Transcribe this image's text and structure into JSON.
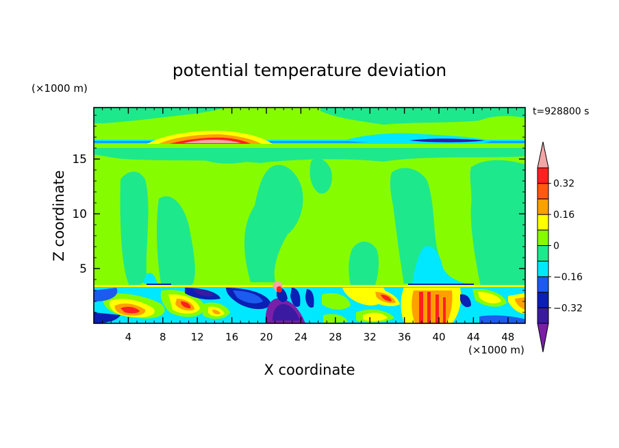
{
  "chart_data": {
    "type": "heatmap",
    "title": "potential temperature deviation",
    "time_label": "t=928800 s",
    "xlabel": "X coordinate",
    "ylabel": "Z coordinate",
    "x_unit": "(×1000 m)",
    "z_unit": "(×1000 m)",
    "xlim": [
      0,
      50
    ],
    "zlim": [
      0,
      19.7
    ],
    "x_ticks": [
      4,
      8,
      12,
      16,
      20,
      24,
      28,
      32,
      36,
      40,
      44,
      48
    ],
    "z_ticks": [
      5,
      10,
      15
    ],
    "colorbar": {
      "levels": [
        -0.4,
        -0.32,
        -0.24,
        -0.16,
        -0.08,
        0,
        0.08,
        0.16,
        0.24,
        0.32,
        0.4
      ],
      "labels": [
        "0.32",
        "0.16",
        "0",
        "−0.16",
        "−0.32"
      ],
      "label_values": [
        0.32,
        0.16,
        0,
        -0.16,
        -0.32
      ],
      "colors": [
        "#7a1fa8",
        "#3a1aa0",
        "#0a1fb4",
        "#1b5bf0",
        "#00e8ff",
        "#1ee88c",
        "#86fc00",
        "#ffff00",
        "#ffa000",
        "#ff5a10",
        "#ff2020",
        "#f4a6a6"
      ]
    }
  }
}
